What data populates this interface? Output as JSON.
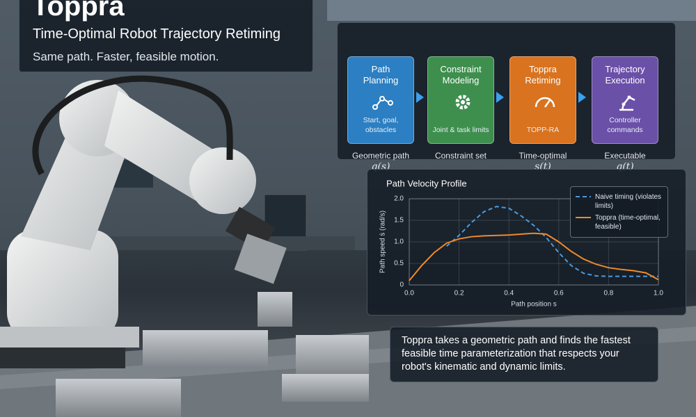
{
  "header": {
    "title": "Toppra",
    "subtitle": "Time-Optimal Robot Trajectory Retiming",
    "tagline": "Same path. Faster, feasible motion."
  },
  "pipeline": {
    "steps": [
      {
        "title": "Path Planning",
        "description": "Start, goal, obstacles",
        "output": "Geometric path",
        "math": "q(s)",
        "color": "#2b7fc2"
      },
      {
        "title": "Constraint Modeling",
        "description": "Joint & task limits",
        "output": "Constraint set",
        "math": "",
        "color": "#3e8f4e"
      },
      {
        "title": "Toppra Retiming",
        "description": "TOPP-RA",
        "output": "Time-optimal",
        "math": "s(t)",
        "color": "#d9731f"
      },
      {
        "title": "Trajectory Execution",
        "description": "Controller commands",
        "output": "Executable",
        "math": "q(t)",
        "color": "#6b50a8"
      }
    ]
  },
  "chart_data": {
    "type": "line",
    "title": "Path Velocity Profile",
    "x_label": "Path position s",
    "y_label": "Path speed ṡ (rad/s)",
    "x": [
      0,
      0.05,
      0.1,
      0.15,
      0.2,
      0.25,
      0.3,
      0.35,
      0.4,
      0.45,
      0.5,
      0.55,
      0.6,
      0.65,
      0.7,
      0.75,
      0.8,
      0.85,
      0.9,
      0.95,
      1.0
    ],
    "series": [
      {
        "name": "Naive timing (violates limits)",
        "color": "#4a9be0",
        "dashed": true,
        "values": [
          null,
          null,
          null,
          0.9,
          1.15,
          1.45,
          1.7,
          1.82,
          1.78,
          1.6,
          1.38,
          1.1,
          0.75,
          0.45,
          0.27,
          0.21,
          0.2,
          0.2,
          0.2,
          0.2,
          0.2
        ]
      },
      {
        "name": "Toppra (time-optimal, feasible)",
        "color": "#f08a2a",
        "dashed": false,
        "values": [
          0.1,
          0.45,
          0.75,
          0.97,
          1.07,
          1.12,
          1.14,
          1.15,
          1.16,
          1.18,
          1.2,
          1.18,
          1.0,
          0.78,
          0.6,
          0.48,
          0.4,
          0.36,
          0.33,
          0.28,
          0.12
        ]
      }
    ],
    "xlim": [
      0,
      1
    ],
    "ylim": [
      0,
      2
    ],
    "xticks": [
      {
        "value": 0,
        "label": "0.0"
      },
      0.2,
      0.4,
      0.6,
      0.8,
      {
        "value": 1,
        "label": "1.0"
      }
    ],
    "yticks": [
      0,
      0.5,
      {
        "value": 1,
        "label": "1.0"
      },
      1.5,
      {
        "value": 2,
        "label": "2.0"
      }
    ],
    "grid": true,
    "legend": "upper right"
  },
  "caption": "Toppra takes a geometric path and finds the fastest feasible time parameterization that respects your robot's kinematic and dynamic limits."
}
